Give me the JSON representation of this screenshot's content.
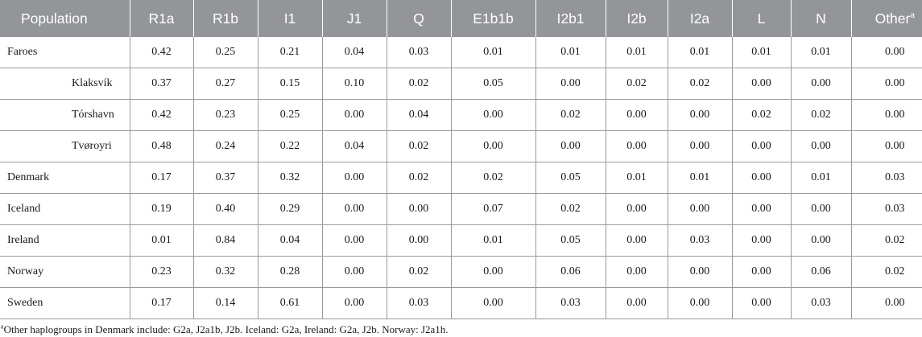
{
  "table": {
    "columns": [
      "Population",
      "R1a",
      "R1b",
      "I1",
      "J1",
      "Q",
      "E1b1b",
      "I2b1",
      "I2b",
      "I2a",
      "L",
      "N",
      "Other"
    ],
    "last_column_marker": "a",
    "rows": [
      {
        "population": "Faroes",
        "sub": false,
        "values": [
          "0.42",
          "0.25",
          "0.21",
          "0.04",
          "0.03",
          "0.01",
          "0.01",
          "0.01",
          "0.01",
          "0.01",
          "0.01",
          "0.00"
        ]
      },
      {
        "population": "Klaksvík",
        "sub": true,
        "values": [
          "0.37",
          "0.27",
          "0.15",
          "0.10",
          "0.02",
          "0.05",
          "0.00",
          "0.02",
          "0.02",
          "0.00",
          "0.00",
          "0.00"
        ]
      },
      {
        "population": "Tórshavn",
        "sub": true,
        "values": [
          "0.42",
          "0.23",
          "0.25",
          "0.00",
          "0.04",
          "0.00",
          "0.02",
          "0.00",
          "0.00",
          "0.02",
          "0.02",
          "0.00"
        ]
      },
      {
        "population": "Tvøroyri",
        "sub": true,
        "values": [
          "0.48",
          "0.24",
          "0.22",
          "0.04",
          "0.02",
          "0.00",
          "0.00",
          "0.00",
          "0.00",
          "0.00",
          "0.00",
          "0.00"
        ]
      },
      {
        "population": "Denmark",
        "sub": false,
        "values": [
          "0.17",
          "0.37",
          "0.32",
          "0.00",
          "0.02",
          "0.02",
          "0.05",
          "0.01",
          "0.01",
          "0.00",
          "0.01",
          "0.03"
        ]
      },
      {
        "population": "Iceland",
        "sub": false,
        "values": [
          "0.19",
          "0.40",
          "0.29",
          "0.00",
          "0.00",
          "0.07",
          "0.02",
          "0.00",
          "0.00",
          "0.00",
          "0.00",
          "0.03"
        ]
      },
      {
        "population": "Ireland",
        "sub": false,
        "values": [
          "0.01",
          "0.84",
          "0.04",
          "0.00",
          "0.00",
          "0.01",
          "0.05",
          "0.00",
          "0.03",
          "0.00",
          "0.00",
          "0.02"
        ]
      },
      {
        "population": "Norway",
        "sub": false,
        "values": [
          "0.23",
          "0.32",
          "0.28",
          "0.00",
          "0.02",
          "0.00",
          "0.06",
          "0.00",
          "0.00",
          "0.00",
          "0.06",
          "0.02"
        ]
      },
      {
        "population": "Sweden",
        "sub": false,
        "values": [
          "0.17",
          "0.14",
          "0.61",
          "0.00",
          "0.03",
          "0.00",
          "0.03",
          "0.00",
          "0.00",
          "0.00",
          "0.03",
          "0.00"
        ]
      }
    ]
  },
  "footnote": {
    "marker": "a",
    "text": "Other haplogroups in Denmark include: G2a, J2a1b, J2b. Iceland: G2a, Ireland: G2a, J2b. Norway: J2a1h."
  }
}
